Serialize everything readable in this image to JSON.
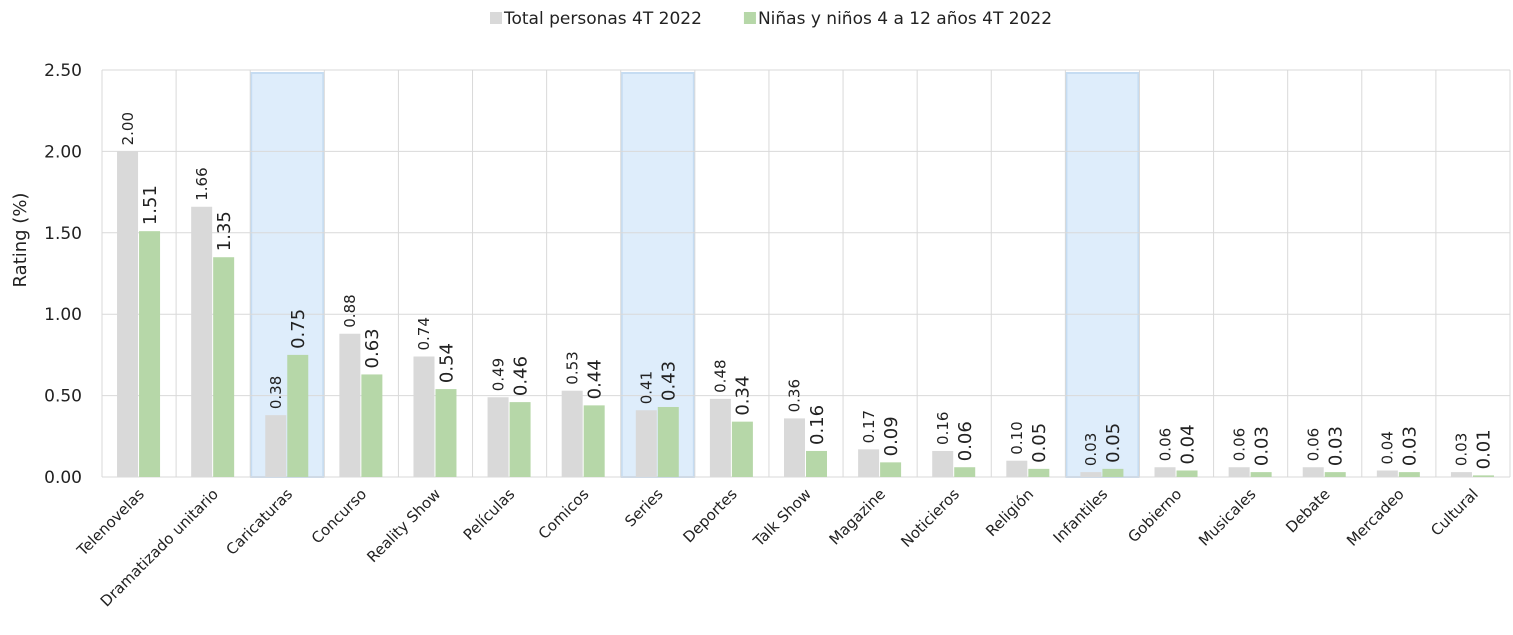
{
  "chart_data": {
    "type": "bar",
    "y_axis_label": "Rating (%)",
    "categories": [
      "Telenovelas",
      "Dramatizado unitario",
      "Caricaturas",
      "Concurso",
      "Reality Show",
      "Películas",
      "Comicos",
      "Series",
      "Deportes",
      "Talk Show",
      "Magazine",
      "Noticieros",
      "Religión",
      "Infantiles",
      "Gobierno",
      "Musicales",
      "Debate",
      "Mercadeo",
      "Cultural"
    ],
    "series": [
      {
        "name": "Total personas 4T 2022",
        "color": "#d9d9d9",
        "values": [
          2.0,
          1.66,
          0.38,
          0.88,
          0.74,
          0.49,
          0.53,
          0.41,
          0.48,
          0.36,
          0.17,
          0.16,
          0.1,
          0.03,
          0.06,
          0.06,
          0.06,
          0.04,
          0.03
        ],
        "value_labels": [
          "2.00",
          "1.66",
          "0.38",
          "0.88",
          "0.74",
          "0.49",
          "0.53",
          "0.41",
          "0.48",
          "0.36",
          "0.17",
          "0.16",
          "0.10",
          "0.03",
          "0.06",
          "0.06",
          "0.06",
          "0.04",
          "0.03"
        ]
      },
      {
        "name": "Niñas y niños 4 a 12 años 4T 2022",
        "color": "#b6d7a8",
        "values": [
          1.51,
          1.35,
          0.75,
          0.63,
          0.54,
          0.46,
          0.44,
          0.43,
          0.34,
          0.16,
          0.09,
          0.06,
          0.05,
          0.05,
          0.04,
          0.03,
          0.03,
          0.03,
          0.01
        ],
        "value_labels": [
          "1.51",
          "1.35",
          "0.75",
          "0.63",
          "0.54",
          "0.46",
          "0.44",
          "0.43",
          "0.34",
          "0.16",
          "0.09",
          "0.06",
          "0.05",
          "0.05",
          "0.04",
          "0.03",
          "0.03",
          "0.03",
          "0.01"
        ]
      }
    ],
    "ylim": [
      0,
      2.5
    ],
    "yticks": [
      {
        "value": 0,
        "label": "0.00"
      },
      {
        "value": 0.5,
        "label": "0.50"
      },
      {
        "value": 1,
        "label": "1.00"
      },
      {
        "value": 1.5,
        "label": "1.50"
      },
      {
        "value": 2,
        "label": "2.00"
      },
      {
        "value": 2.5,
        "label": "2.50"
      }
    ],
    "grid": true,
    "legend": "top",
    "highlight": [
      2,
      7,
      13
    ],
    "highlight_color": "#deedfb"
  }
}
